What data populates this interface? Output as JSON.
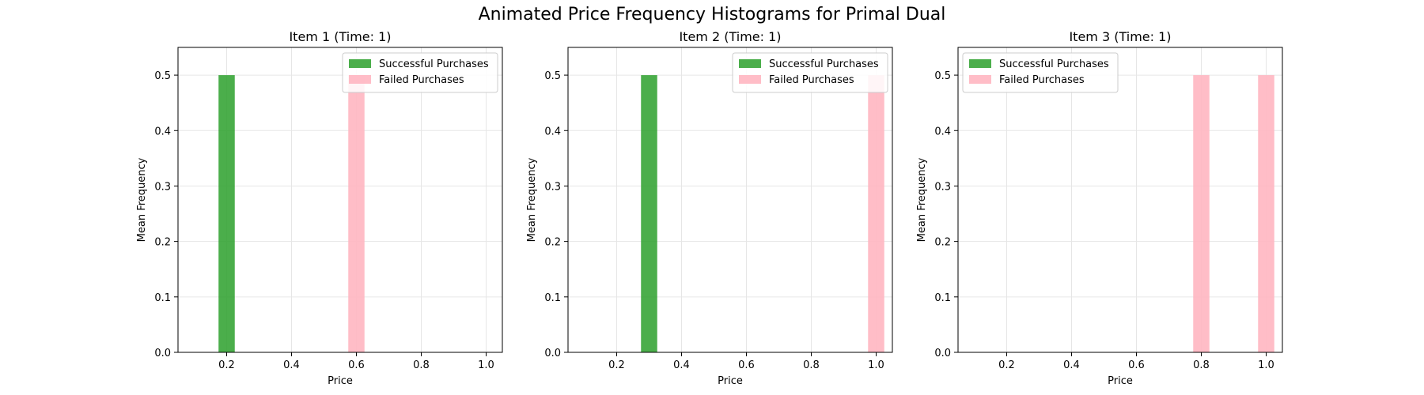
{
  "figure_title": "Animated Price Frequency Histograms for Primal Dual",
  "colors": {
    "successful": "#2ca02c",
    "failed": "#ffb6c1",
    "grid": "#e6e6e6",
    "axis": "#000000"
  },
  "chart_data": [
    {
      "type": "bar",
      "title": "Item 1 (Time: 1)",
      "xlabel": "Price",
      "ylabel": "Mean Frequency",
      "xlim": [
        0.05,
        1.05
      ],
      "ylim": [
        0,
        0.55
      ],
      "xticks": [
        0.2,
        0.4,
        0.6,
        0.8,
        1.0
      ],
      "xtick_labels": [
        "0.2",
        "0.4",
        "0.6",
        "0.8",
        "1.0"
      ],
      "yticks": [
        0.0,
        0.1,
        0.2,
        0.3,
        0.4,
        0.5
      ],
      "ytick_labels": [
        "0.0",
        "0.1",
        "0.2",
        "0.3",
        "0.4",
        "0.5"
      ],
      "bar_width": 0.05,
      "grid": true,
      "legend": "top-right",
      "series": [
        {
          "name": "Successful Purchases",
          "x": [
            0.2
          ],
          "values": [
            0.5
          ]
        },
        {
          "name": "Failed Purchases",
          "x": [
            0.6
          ],
          "values": [
            0.5
          ]
        }
      ]
    },
    {
      "type": "bar",
      "title": "Item 2 (Time: 1)",
      "xlabel": "Price",
      "ylabel": "Mean Frequency",
      "xlim": [
        0.05,
        1.05
      ],
      "ylim": [
        0,
        0.55
      ],
      "xticks": [
        0.2,
        0.4,
        0.6,
        0.8,
        1.0
      ],
      "xtick_labels": [
        "0.2",
        "0.4",
        "0.6",
        "0.8",
        "1.0"
      ],
      "yticks": [
        0.0,
        0.1,
        0.2,
        0.3,
        0.4,
        0.5
      ],
      "ytick_labels": [
        "0.0",
        "0.1",
        "0.2",
        "0.3",
        "0.4",
        "0.5"
      ],
      "bar_width": 0.05,
      "grid": true,
      "legend": "top-right",
      "series": [
        {
          "name": "Successful Purchases",
          "x": [
            0.3
          ],
          "values": [
            0.5
          ]
        },
        {
          "name": "Failed Purchases",
          "x": [
            1.0
          ],
          "values": [
            0.5
          ]
        }
      ]
    },
    {
      "type": "bar",
      "title": "Item 3 (Time: 1)",
      "xlabel": "Price",
      "ylabel": "Mean Frequency",
      "xlim": [
        0.05,
        1.05
      ],
      "ylim": [
        0,
        0.55
      ],
      "xticks": [
        0.2,
        0.4,
        0.6,
        0.8,
        1.0
      ],
      "xtick_labels": [
        "0.2",
        "0.4",
        "0.6",
        "0.8",
        "1.0"
      ],
      "yticks": [
        0.0,
        0.1,
        0.2,
        0.3,
        0.4,
        0.5
      ],
      "ytick_labels": [
        "0.0",
        "0.1",
        "0.2",
        "0.3",
        "0.4",
        "0.5"
      ],
      "bar_width": 0.05,
      "grid": true,
      "legend": "top-left",
      "series": [
        {
          "name": "Successful Purchases",
          "x": [],
          "values": []
        },
        {
          "name": "Failed Purchases",
          "x": [
            0.8,
            1.0
          ],
          "values": [
            0.5,
            0.5
          ]
        }
      ]
    }
  ]
}
